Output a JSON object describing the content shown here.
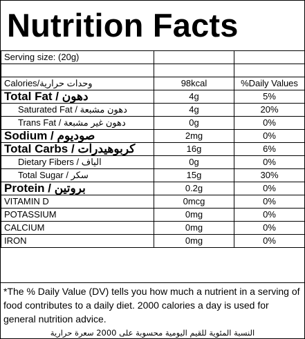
{
  "title": "Nutrition Facts",
  "serving": {
    "label": "Serving size:  (20g)"
  },
  "header": {
    "calories_label": "Calories/وحدات حرارية",
    "calories_value": "98kcal",
    "dv_header": "%Daily Values"
  },
  "rows": [
    {
      "label": "Total Fat / دهون",
      "value": "4g",
      "dv": "5%"
    },
    {
      "label": "Saturated Fat / دهون مشبعة",
      "value": "4g",
      "dv": "20%"
    },
    {
      "label": "Trans Fat / دهون غير مشبعة",
      "value": "0g",
      "dv": "0%"
    },
    {
      "label": "Sodium / صوديوم",
      "value": "2mg",
      "dv": "0%"
    },
    {
      "label": "Total Carbs / كربوهيدرات",
      "value": "16g",
      "dv": "6%"
    },
    {
      "label": "Dietary Fibers / الياف",
      "value": "0g",
      "dv": "0%"
    },
    {
      "label": "Total Sugar / سكر",
      "value": "15g",
      "dv": "30%"
    },
    {
      "label": "Protein / بروتين",
      "value": "0.2g",
      "dv": "0%"
    },
    {
      "label": "VITAMIN D",
      "value": "0mcg",
      "dv": "0%"
    },
    {
      "label": "POTASSIUM",
      "value": "0mg",
      "dv": "0%"
    },
    {
      "label": "CALCIUM",
      "value": "0mg",
      "dv": "0%"
    },
    {
      "label": "IRON",
      "value": "0mg",
      "dv": "0%"
    }
  ],
  "footnote": {
    "english": "*The % Daily Value (DV) tells you how much a nutrient in a serving of food contributes to a daily diet. 2000 calories a day is used for general nutrition advice.",
    "arabic": "النسبة المئوية للقيم اليومية محسوبة على 2000 سعرة حرارية"
  }
}
